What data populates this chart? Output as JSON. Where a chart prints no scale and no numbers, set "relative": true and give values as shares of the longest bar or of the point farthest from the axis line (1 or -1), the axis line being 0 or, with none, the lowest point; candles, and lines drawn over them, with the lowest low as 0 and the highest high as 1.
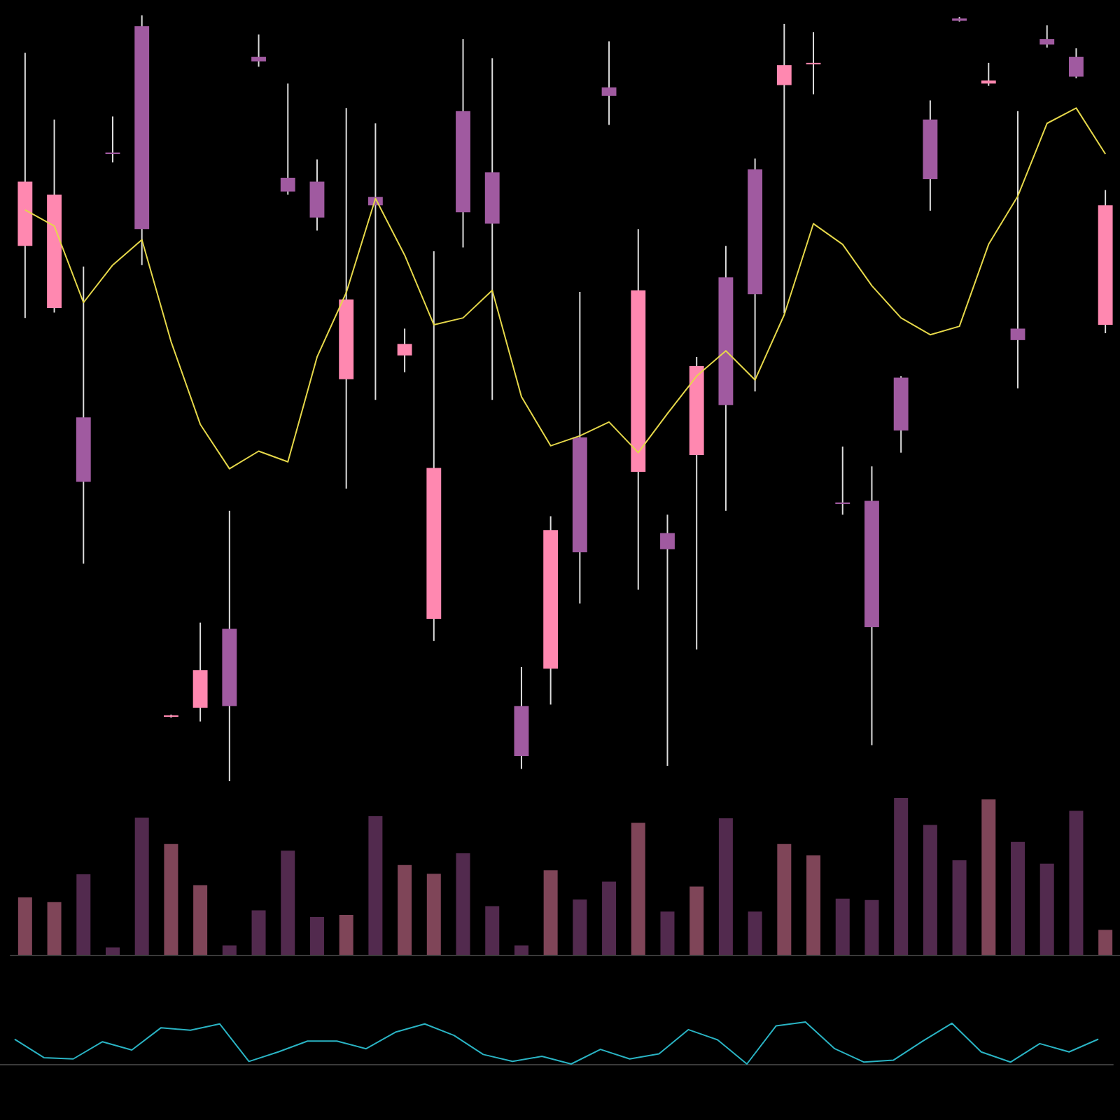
{
  "chart_data": [
    {
      "type": "candlestick",
      "relative": true,
      "categories": [
        null,
        null,
        null,
        null,
        null,
        null,
        null,
        null,
        null,
        null,
        null,
        null,
        null,
        null,
        null,
        null,
        null,
        null,
        null,
        null,
        null,
        null,
        null,
        null,
        null,
        null,
        null,
        null,
        null,
        null,
        null,
        null,
        null,
        null,
        null,
        null,
        null,
        null
      ],
      "ohlc": [
        [
          0.699,
          0.951,
          0.605,
          0.783
        ],
        [
          0.618,
          0.864,
          0.612,
          0.766
        ],
        [
          0.475,
          0.672,
          0.284,
          0.391
        ],
        [
          0.821,
          0.868,
          0.808,
          0.819
        ],
        [
          0.986,
          1,
          0.674,
          0.721
        ],
        [
          0.084,
          0.087,
          0.083,
          0.086
        ],
        [
          0.096,
          0.207,
          0.078,
          0.145
        ],
        [
          0.199,
          0.353,
          0,
          0.098
        ],
        [
          0.946,
          0.975,
          0.933,
          0.94
        ],
        [
          0.788,
          0.911,
          0.766,
          0.77
        ],
        [
          0.783,
          0.812,
          0.719,
          0.736
        ],
        [
          0.525,
          0.879,
          0.382,
          0.629
        ],
        [
          0.763,
          0.859,
          0.498,
          0.752
        ],
        [
          0.556,
          0.591,
          0.534,
          0.571
        ],
        [
          0.212,
          0.692,
          0.183,
          0.409
        ],
        [
          0.875,
          0.969,
          0.697,
          0.743
        ],
        [
          0.795,
          0.944,
          0.498,
          0.728
        ],
        [
          0.098,
          0.149,
          0.016,
          0.033
        ],
        [
          0.147,
          0.346,
          0.1,
          0.328
        ],
        [
          0.449,
          0.639,
          0.232,
          0.299
        ],
        [
          0.906,
          0.966,
          0.857,
          0.895
        ],
        [
          0.404,
          0.721,
          0.25,
          0.641
        ],
        [
          0.324,
          0.348,
          0.02,
          0.303
        ],
        [
          0.426,
          0.554,
          0.172,
          0.542
        ],
        [
          0.658,
          0.699,
          0.353,
          0.491
        ],
        [
          0.799,
          0.813,
          0.509,
          0.636
        ],
        [
          0.909,
          0.989,
          0.611,
          0.935
        ],
        [
          0.937,
          0.978,
          0.897,
          0.938
        ],
        [
          0.364,
          0.437,
          0.348,
          0.362
        ],
        [
          0.366,
          0.411,
          0.047,
          0.201
        ],
        [
          0.527,
          0.529,
          0.429,
          0.458
        ],
        [
          0.864,
          0.889,
          0.745,
          0.786
        ],
        [
          0.996,
          0.998,
          0.992,
          0.993
        ],
        [
          0.911,
          0.938,
          0.908,
          0.915
        ],
        [
          0.591,
          0.875,
          0.513,
          0.576
        ],
        [
          0.969,
          0.987,
          0.958,
          0.962
        ],
        [
          0.946,
          0.957,
          0.918,
          0.92
        ],
        [
          0.596,
          0.772,
          0.585,
          0.752
        ]
      ],
      "colors": [
        "#ff88b0",
        "#ff88b0",
        "#a05aa0",
        "#a05aa0",
        "#a05aa0",
        "#ff88b0",
        "#ff88b0",
        "#a05aa0",
        "#a05aa0",
        "#a05aa0",
        "#a05aa0",
        "#ff88b0",
        "#a05aa0",
        "#ff88b0",
        "#ff88b0",
        "#a05aa0",
        "#a05aa0",
        "#a05aa0",
        "#ff88b0",
        "#a05aa0",
        "#a05aa0",
        "#ff88b0",
        "#a05aa0",
        "#ff88b0",
        "#a05aa0",
        "#a05aa0",
        "#ff88b0",
        "#ff88b0",
        "#a05aa0",
        "#a05aa0",
        "#a05aa0",
        "#a05aa0",
        "#a05aa0",
        "#ff88b0",
        "#a05aa0",
        "#a05aa0",
        "#a05aa0",
        "#ff88b0"
      ],
      "series": [
        {
          "type": "line",
          "color": "#e6d84a",
          "values": [
            0.746,
            0.725,
            0.625,
            0.674,
            0.707,
            0.574,
            0.466,
            0.408,
            0.431,
            0.417,
            0.554,
            0.638,
            0.761,
            0.687,
            0.596,
            0.605,
            0.641,
            0.502,
            0.438,
            0.451,
            0.469,
            0.429,
            0.48,
            0.529,
            0.562,
            0.524,
            0.609,
            0.728,
            0.701,
            0.647,
            0.605,
            0.583,
            0.594,
            0.701,
            0.764,
            0.859,
            0.879,
            0.819
          ]
        }
      ]
    },
    {
      "type": "bar",
      "relative": true,
      "categories": [
        null,
        null,
        null,
        null,
        null,
        null,
        null,
        null,
        null,
        null,
        null,
        null,
        null,
        null,
        null,
        null,
        null,
        null,
        null,
        null,
        null,
        null,
        null,
        null,
        null,
        null,
        null,
        null,
        null,
        null,
        null,
        null,
        null,
        null,
        null,
        null,
        null,
        null
      ],
      "values": [
        0.366,
        0.336,
        0.513,
        0.047,
        0.875,
        0.707,
        0.444,
        0.06,
        0.284,
        0.664,
        0.241,
        0.254,
        0.884,
        0.573,
        0.517,
        0.647,
        0.31,
        0.06,
        0.539,
        0.353,
        0.466,
        0.841,
        0.276,
        0.435,
        0.871,
        0.276,
        0.707,
        0.634,
        0.358,
        0.349,
        1,
        0.828,
        0.603,
        0.991,
        0.72,
        0.582,
        0.918,
        0.159
      ],
      "colors": [
        "#7f4558",
        "#7f4558",
        "#522a4e",
        "#522a4e",
        "#522a4e",
        "#7f4558",
        "#7f4558",
        "#522a4e",
        "#522a4e",
        "#522a4e",
        "#522a4e",
        "#7f4558",
        "#522a4e",
        "#7f4558",
        "#7f4558",
        "#522a4e",
        "#522a4e",
        "#522a4e",
        "#7f4558",
        "#522a4e",
        "#522a4e",
        "#7f4558",
        "#522a4e",
        "#7f4558",
        "#522a4e",
        "#522a4e",
        "#7f4558",
        "#7f4558",
        "#522a4e",
        "#522a4e",
        "#522a4e",
        "#522a4e",
        "#522a4e",
        "#7f4558",
        "#522a4e",
        "#522a4e",
        "#522a4e",
        "#7f4558"
      ]
    },
    {
      "type": "line",
      "relative": true,
      "categories": [
        null,
        null,
        null,
        null,
        null,
        null,
        null,
        null,
        null,
        null,
        null,
        null,
        null,
        null,
        null,
        null,
        null,
        null,
        null,
        null,
        null,
        null,
        null,
        null,
        null,
        null,
        null,
        null,
        null,
        null,
        null,
        null,
        null,
        null,
        null,
        null,
        null,
        null
      ],
      "color": "#2ab4c4",
      "values": [
        0.591,
        0.152,
        0.121,
        0.53,
        0.333,
        0.864,
        0.803,
        0.955,
        0.061,
        0.288,
        0.545,
        0.545,
        0.364,
        0.758,
        0.955,
        0.682,
        0.227,
        0.061,
        0.182,
        0,
        0.348,
        0.121,
        0.242,
        0.818,
        0.576,
        0,
        0.909,
        1,
        0.364,
        0.045,
        0.091,
        0.545,
        0.97,
        0.288,
        0.045,
        0.485,
        0.288,
        0.591
      ]
    }
  ]
}
